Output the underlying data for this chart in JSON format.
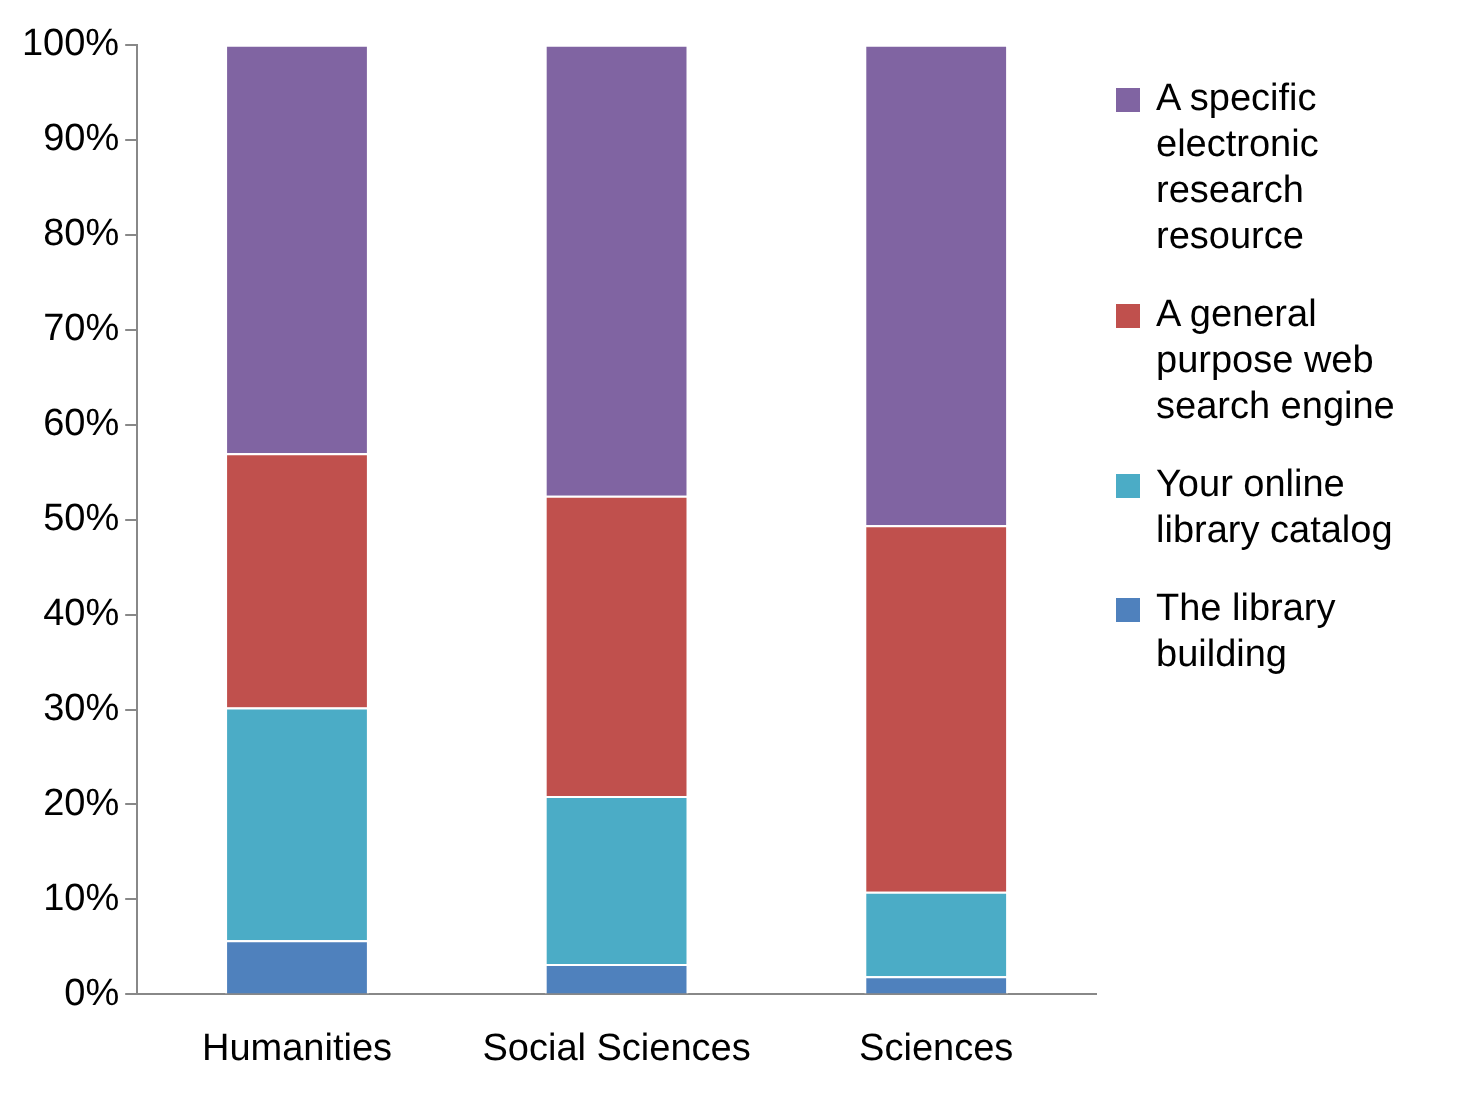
{
  "chart_data": {
    "type": "bar",
    "stacked": true,
    "categories": [
      "Humanities",
      "Social Sciences",
      "Sciences"
    ],
    "series": [
      {
        "name": "The library building",
        "color": "#4f81bd",
        "values": [
          5.7,
          3.2,
          1.9
        ]
      },
      {
        "name": "Your online library catalog",
        "color": "#4bacc6",
        "values": [
          24.5,
          17.7,
          8.9
        ]
      },
      {
        "name": "A general purpose web search engine",
        "color": "#c0504d",
        "values": [
          26.8,
          31.6,
          38.6
        ]
      },
      {
        "name": "A specific electronic research resource",
        "color": "#8064a2",
        "values": [
          43,
          47.5,
          50.6
        ]
      }
    ],
    "ylim": [
      0,
      100
    ],
    "yticks": [
      {
        "value": 0,
        "label": "0%"
      },
      {
        "value": 10,
        "label": "10%"
      },
      {
        "value": 20,
        "label": "20%"
      },
      {
        "value": 30,
        "label": "30%"
      },
      {
        "value": 40,
        "label": "40%"
      },
      {
        "value": 50,
        "label": "50%"
      },
      {
        "value": 60,
        "label": "60%"
      },
      {
        "value": 70,
        "label": "70%"
      },
      {
        "value": 80,
        "label": "80%"
      },
      {
        "value": 90,
        "label": "90%"
      },
      {
        "value": 100,
        "label": "100%"
      }
    ],
    "grid": false,
    "legend": "right"
  }
}
